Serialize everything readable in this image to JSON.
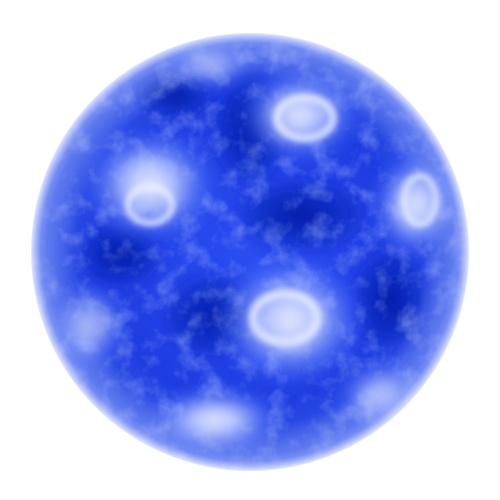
{
  "image": {
    "subject": "globe-sphere",
    "colors": {
      "base": "#1e3de0",
      "dark": "#0a1fb0",
      "deep": "#0616a0",
      "mid": "#3b63ff",
      "light": "#a9bcff",
      "highlight": "#e8eeff",
      "glow": "#7e94f2",
      "background": "#ffffff"
    }
  }
}
